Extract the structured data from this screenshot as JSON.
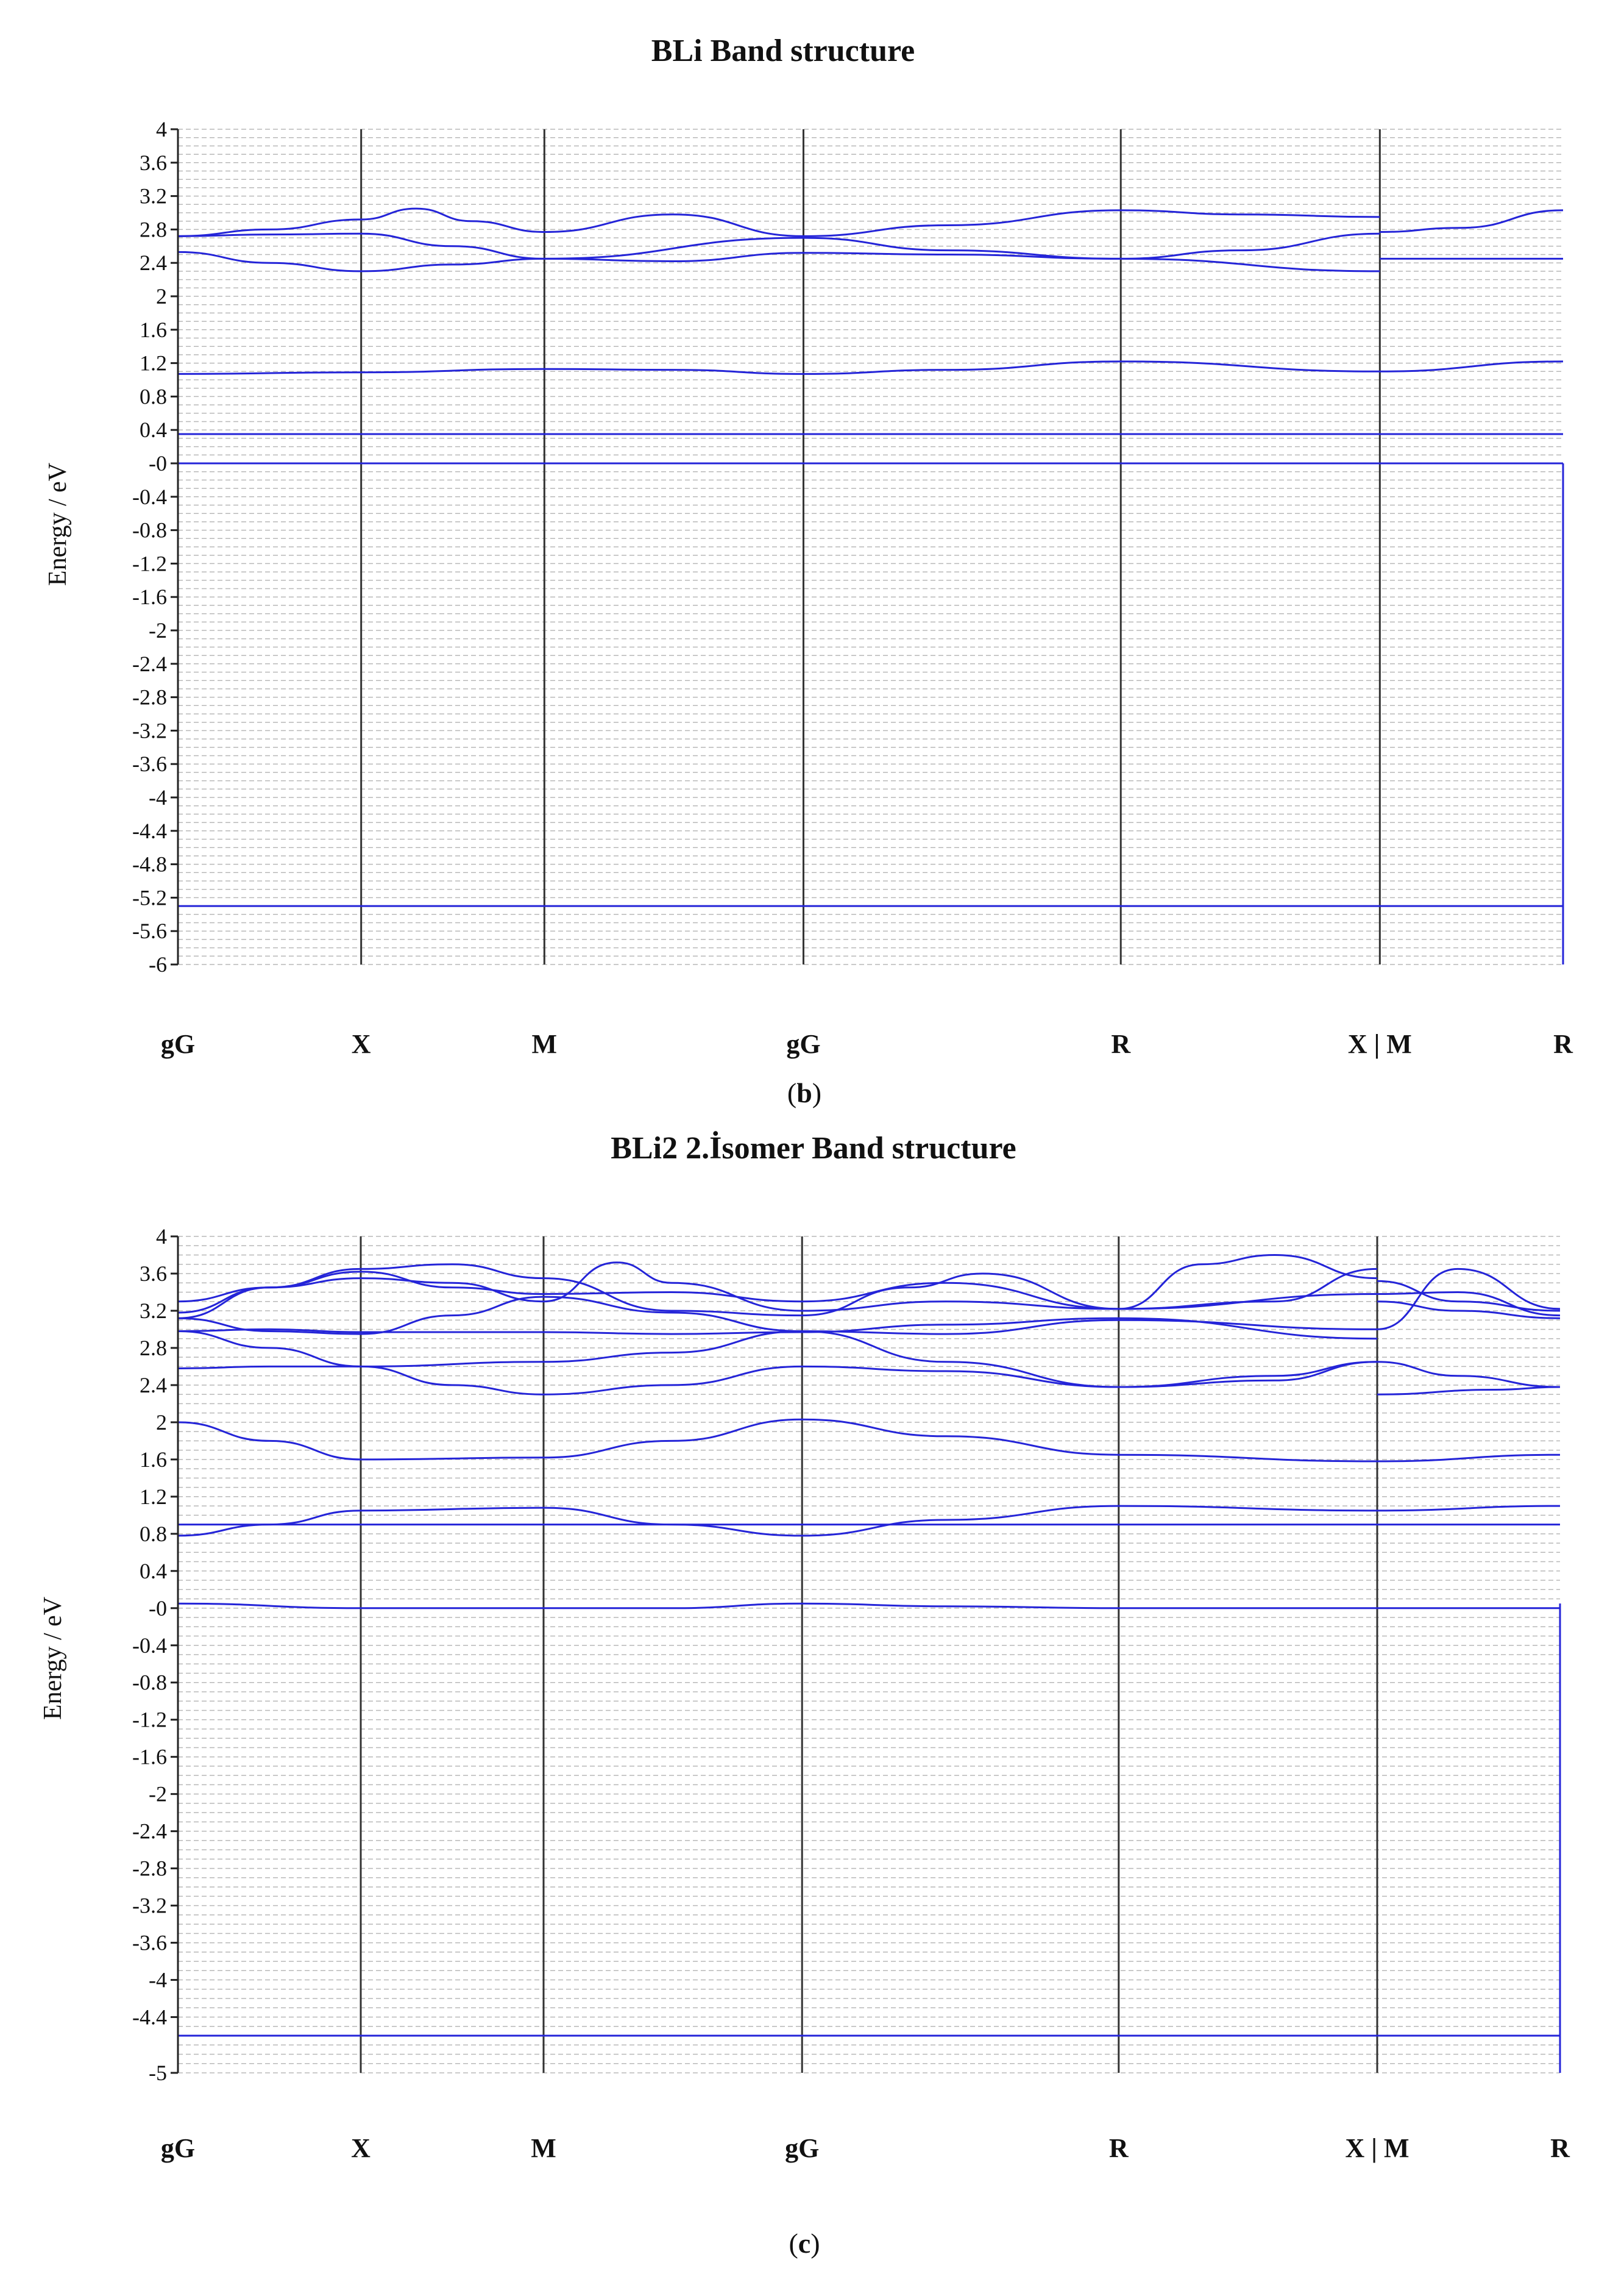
{
  "chart_data": [
    {
      "type": "line",
      "title": "BLi  Band structure",
      "caption_letter": "b",
      "ylabel": "Energy / eV",
      "ylim": [
        -6,
        4
      ],
      "grid": true,
      "yticks": [
        4,
        3.6,
        3.2,
        2.8,
        2.4,
        2,
        1.6,
        1.2,
        0.8,
        0.4,
        0,
        -0.4,
        -0.8,
        -1.2,
        -1.6,
        -2,
        -2.4,
        -2.8,
        -3.2,
        -3.6,
        -4,
        -4.4,
        -4.8,
        -5.2,
        -5.6,
        -6
      ],
      "ytick_labels": [
        "4",
        "3.6",
        "3.2",
        "2.8",
        "2.4",
        "2",
        "1.6",
        "1.2",
        "0.8",
        "0.4",
        "-0",
        "-0.4",
        "-0.8",
        "-1.2",
        "-1.6",
        "-2",
        "-2.4",
        "-2.8",
        "-3.2",
        "-3.6",
        "-4",
        "-4.4",
        "-4.8",
        "-5.2",
        "-5.6",
        "-6"
      ],
      "kpoints": [
        {
          "label": "gG",
          "x": 0
        },
        {
          "label": "X",
          "x": 0.5
        },
        {
          "label": "M",
          "x": 1.0
        },
        {
          "label": "gG",
          "x": 1.707
        },
        {
          "label": "R",
          "x": 2.573
        },
        {
          "label": "X | M",
          "x": 3.28
        },
        {
          "label": "R",
          "x": 3.78
        }
      ],
      "series": [
        {
          "name": "band-1",
          "x": [
            0,
            0.5,
            1.0,
            1.707,
            2.573,
            3.28,
            3.78
          ],
          "values": [
            -5.3,
            -5.3,
            -5.3,
            -5.3,
            -5.3,
            -5.3,
            -5.3
          ]
        },
        {
          "name": "band-2",
          "x": [
            0,
            0.5,
            1.0,
            1.707,
            2.573,
            3.28,
            3.78
          ],
          "values": [
            0.0,
            0.0,
            0.0,
            0.0,
            0.0,
            0.0,
            0.0
          ]
        },
        {
          "name": "band-3",
          "x": [
            0,
            0.5,
            1.0,
            1.707,
            2.573,
            3.28,
            3.78
          ],
          "values": [
            0.35,
            0.35,
            0.35,
            0.35,
            0.35,
            0.35,
            0.35
          ]
        },
        {
          "name": "band-4",
          "x": [
            0,
            0.5,
            1.0,
            1.35,
            1.707,
            2.1,
            2.573,
            3.28,
            3.78
          ],
          "values": [
            1.07,
            1.09,
            1.13,
            1.12,
            1.07,
            1.12,
            1.22,
            1.1,
            1.22
          ]
        },
        {
          "name": "band-5",
          "x": [
            0,
            0.25,
            0.5,
            0.75,
            1.0,
            1.35,
            1.707,
            2.1,
            2.573,
            3.28
          ],
          "values": [
            2.53,
            2.4,
            2.3,
            2.38,
            2.45,
            2.42,
            2.52,
            2.5,
            2.45,
            2.3
          ]
        },
        {
          "name": "band-6",
          "x": [
            0,
            0.25,
            0.5,
            0.75,
            1.0,
            1.707,
            2.1,
            2.573,
            2.9,
            3.28
          ],
          "values": [
            2.72,
            2.74,
            2.75,
            2.6,
            2.45,
            2.7,
            2.55,
            2.45,
            2.55,
            2.75
          ]
        },
        {
          "name": "band-7",
          "x": [
            0,
            0.25,
            0.5,
            0.65,
            0.8,
            1.0,
            1.35,
            1.707,
            2.1,
            2.573,
            2.9,
            3.28
          ],
          "values": [
            2.72,
            2.8,
            2.92,
            3.05,
            2.9,
            2.77,
            2.98,
            2.72,
            2.85,
            3.03,
            2.98,
            2.95
          ]
        },
        {
          "name": "band-8",
          "x": [
            3.28,
            3.78
          ],
          "values": [
            2.45,
            2.45
          ]
        },
        {
          "name": "band-9",
          "x": [
            3.28,
            3.5,
            3.78
          ],
          "values": [
            2.77,
            2.82,
            3.03
          ]
        }
      ]
    },
    {
      "type": "line",
      "title": "BLi2 2.İsomer Band structure",
      "caption_letter": "c",
      "ylabel": "Energy / eV",
      "ylim": [
        -5,
        4
      ],
      "grid": true,
      "yticks": [
        4,
        3.6,
        3.2,
        2.8,
        2.4,
        2,
        1.6,
        1.2,
        0.8,
        0.4,
        0,
        -0.4,
        -0.8,
        -1.2,
        -1.6,
        -2,
        -2.4,
        -2.8,
        -3.2,
        -3.6,
        -4,
        -4.4,
        -5
      ],
      "ytick_labels": [
        "4",
        "3.6",
        "3.2",
        "2.8",
        "2.4",
        "2",
        "1.6",
        "1.2",
        "0.8",
        "0.4",
        "-0",
        "-0.4",
        "-0.8",
        "-1.2",
        "-1.6",
        "-2",
        "-2.4",
        "-2.8",
        "-3.2",
        "-3.6",
        "-4",
        "-4.4",
        "-5"
      ],
      "kpoints": [
        {
          "label": "gG",
          "x": 0
        },
        {
          "label": "X",
          "x": 0.5
        },
        {
          "label": "M",
          "x": 1.0
        },
        {
          "label": "gG",
          "x": 1.707
        },
        {
          "label": "R",
          "x": 2.573
        },
        {
          "label": "X | M",
          "x": 3.28
        },
        {
          "label": "R",
          "x": 3.78
        }
      ],
      "series": [
        {
          "name": "band-1",
          "x": [
            0,
            0.5,
            1.0,
            1.707,
            2.573,
            3.28,
            3.78
          ],
          "values": [
            -4.6,
            -4.6,
            -4.6,
            -4.6,
            -4.6,
            -4.6,
            -4.6
          ]
        },
        {
          "name": "band-2",
          "x": [
            0,
            0.5,
            1.0,
            1.35,
            1.707,
            2.1,
            2.573,
            3.28,
            3.78
          ],
          "values": [
            0.05,
            0.0,
            0.0,
            0.0,
            0.05,
            0.02,
            0.0,
            0.0,
            0.0
          ]
        },
        {
          "name": "band-3",
          "x": [
            0,
            0.5,
            1.0,
            1.707,
            2.573,
            3.28,
            3.78
          ],
          "values": [
            0.9,
            0.9,
            0.9,
            0.9,
            0.9,
            0.9,
            0.9
          ]
        },
        {
          "name": "band-4",
          "x": [
            0,
            0.25,
            0.5,
            1.0,
            1.35,
            1.707,
            2.1,
            2.573,
            3.28,
            3.78
          ],
          "values": [
            0.78,
            0.9,
            1.05,
            1.08,
            0.9,
            0.78,
            0.95,
            1.1,
            1.05,
            1.1
          ]
        },
        {
          "name": "band-5",
          "x": [
            0,
            0.25,
            0.5,
            1.0,
            1.35,
            1.707,
            2.1,
            2.573,
            3.28,
            3.78
          ],
          "values": [
            2.0,
            1.8,
            1.6,
            1.62,
            1.8,
            2.03,
            1.85,
            1.65,
            1.58,
            1.65
          ]
        },
        {
          "name": "band-6",
          "x": [
            0,
            0.25,
            0.5,
            0.75,
            1.0,
            1.35,
            1.707,
            2.1,
            2.573,
            3.0,
            3.28
          ],
          "values": [
            2.98,
            2.8,
            2.6,
            2.4,
            2.3,
            2.4,
            2.6,
            2.55,
            2.38,
            2.5,
            2.65
          ]
        },
        {
          "name": "band-7",
          "x": [
            0,
            0.25,
            0.5,
            1.0,
            1.35,
            1.707,
            2.1,
            2.573,
            3.0,
            3.28
          ],
          "values": [
            2.58,
            2.6,
            2.6,
            2.65,
            2.75,
            2.98,
            2.65,
            2.38,
            2.45,
            2.65
          ]
        },
        {
          "name": "band-8",
          "x": [
            0,
            0.25,
            0.5,
            1.0,
            1.35,
            1.707,
            2.1,
            2.573,
            3.28
          ],
          "values": [
            2.98,
            3.0,
            2.97,
            2.97,
            2.95,
            2.97,
            3.05,
            3.12,
            2.9
          ]
        },
        {
          "name": "band-9",
          "x": [
            0,
            0.25,
            0.5,
            0.75,
            1.0,
            1.35,
            1.707,
            2.1,
            2.573,
            3.28
          ],
          "values": [
            3.12,
            2.98,
            2.95,
            3.15,
            3.35,
            3.18,
            2.98,
            2.95,
            3.1,
            3.0
          ]
        },
        {
          "name": "band-10",
          "x": [
            0,
            0.25,
            0.5,
            0.75,
            1.0,
            1.35,
            1.707,
            2.1,
            2.573,
            3.0,
            3.28
          ],
          "values": [
            3.18,
            3.45,
            3.62,
            3.45,
            3.38,
            3.4,
            3.3,
            3.5,
            3.22,
            3.3,
            3.65
          ]
        },
        {
          "name": "band-11",
          "x": [
            0,
            0.25,
            0.5,
            0.75,
            1.0,
            1.35,
            1.707,
            2.0,
            2.2,
            2.573,
            3.28
          ],
          "values": [
            3.3,
            3.45,
            3.65,
            3.7,
            3.55,
            3.2,
            3.15,
            3.45,
            3.6,
            3.22,
            3.38
          ]
        },
        {
          "name": "band-12",
          "x": [
            0,
            0.25,
            0.5,
            0.75,
            1.0,
            1.2,
            1.35,
            1.707,
            2.1,
            2.573,
            2.8,
            3.0,
            3.28
          ],
          "values": [
            3.12,
            3.45,
            3.55,
            3.5,
            3.3,
            3.72,
            3.5,
            3.2,
            3.3,
            3.22,
            3.7,
            3.8,
            3.55
          ]
        },
        {
          "name": "band-13",
          "x": [
            3.28,
            3.6,
            3.78
          ],
          "values": [
            2.3,
            2.35,
            2.38
          ]
        },
        {
          "name": "band-14",
          "x": [
            3.28,
            3.5,
            3.78
          ],
          "values": [
            2.65,
            2.5,
            2.38
          ]
        },
        {
          "name": "band-15",
          "x": [
            3.28,
            3.5,
            3.78
          ],
          "values": [
            3.38,
            3.4,
            3.15
          ]
        },
        {
          "name": "band-16",
          "x": [
            3.28,
            3.5,
            3.78
          ],
          "values": [
            3.52,
            3.3,
            3.2
          ]
        },
        {
          "name": "band-17",
          "x": [
            3.28,
            3.5,
            3.78
          ],
          "values": [
            3.0,
            3.65,
            3.22
          ]
        },
        {
          "name": "band-18",
          "x": [
            3.28,
            3.5,
            3.78
          ],
          "values": [
            3.3,
            3.2,
            3.12
          ]
        }
      ]
    }
  ],
  "colors": {
    "band": "#2424d8",
    "axis": "#222222",
    "grid": "#b8b8b8",
    "kline": "#333333"
  }
}
